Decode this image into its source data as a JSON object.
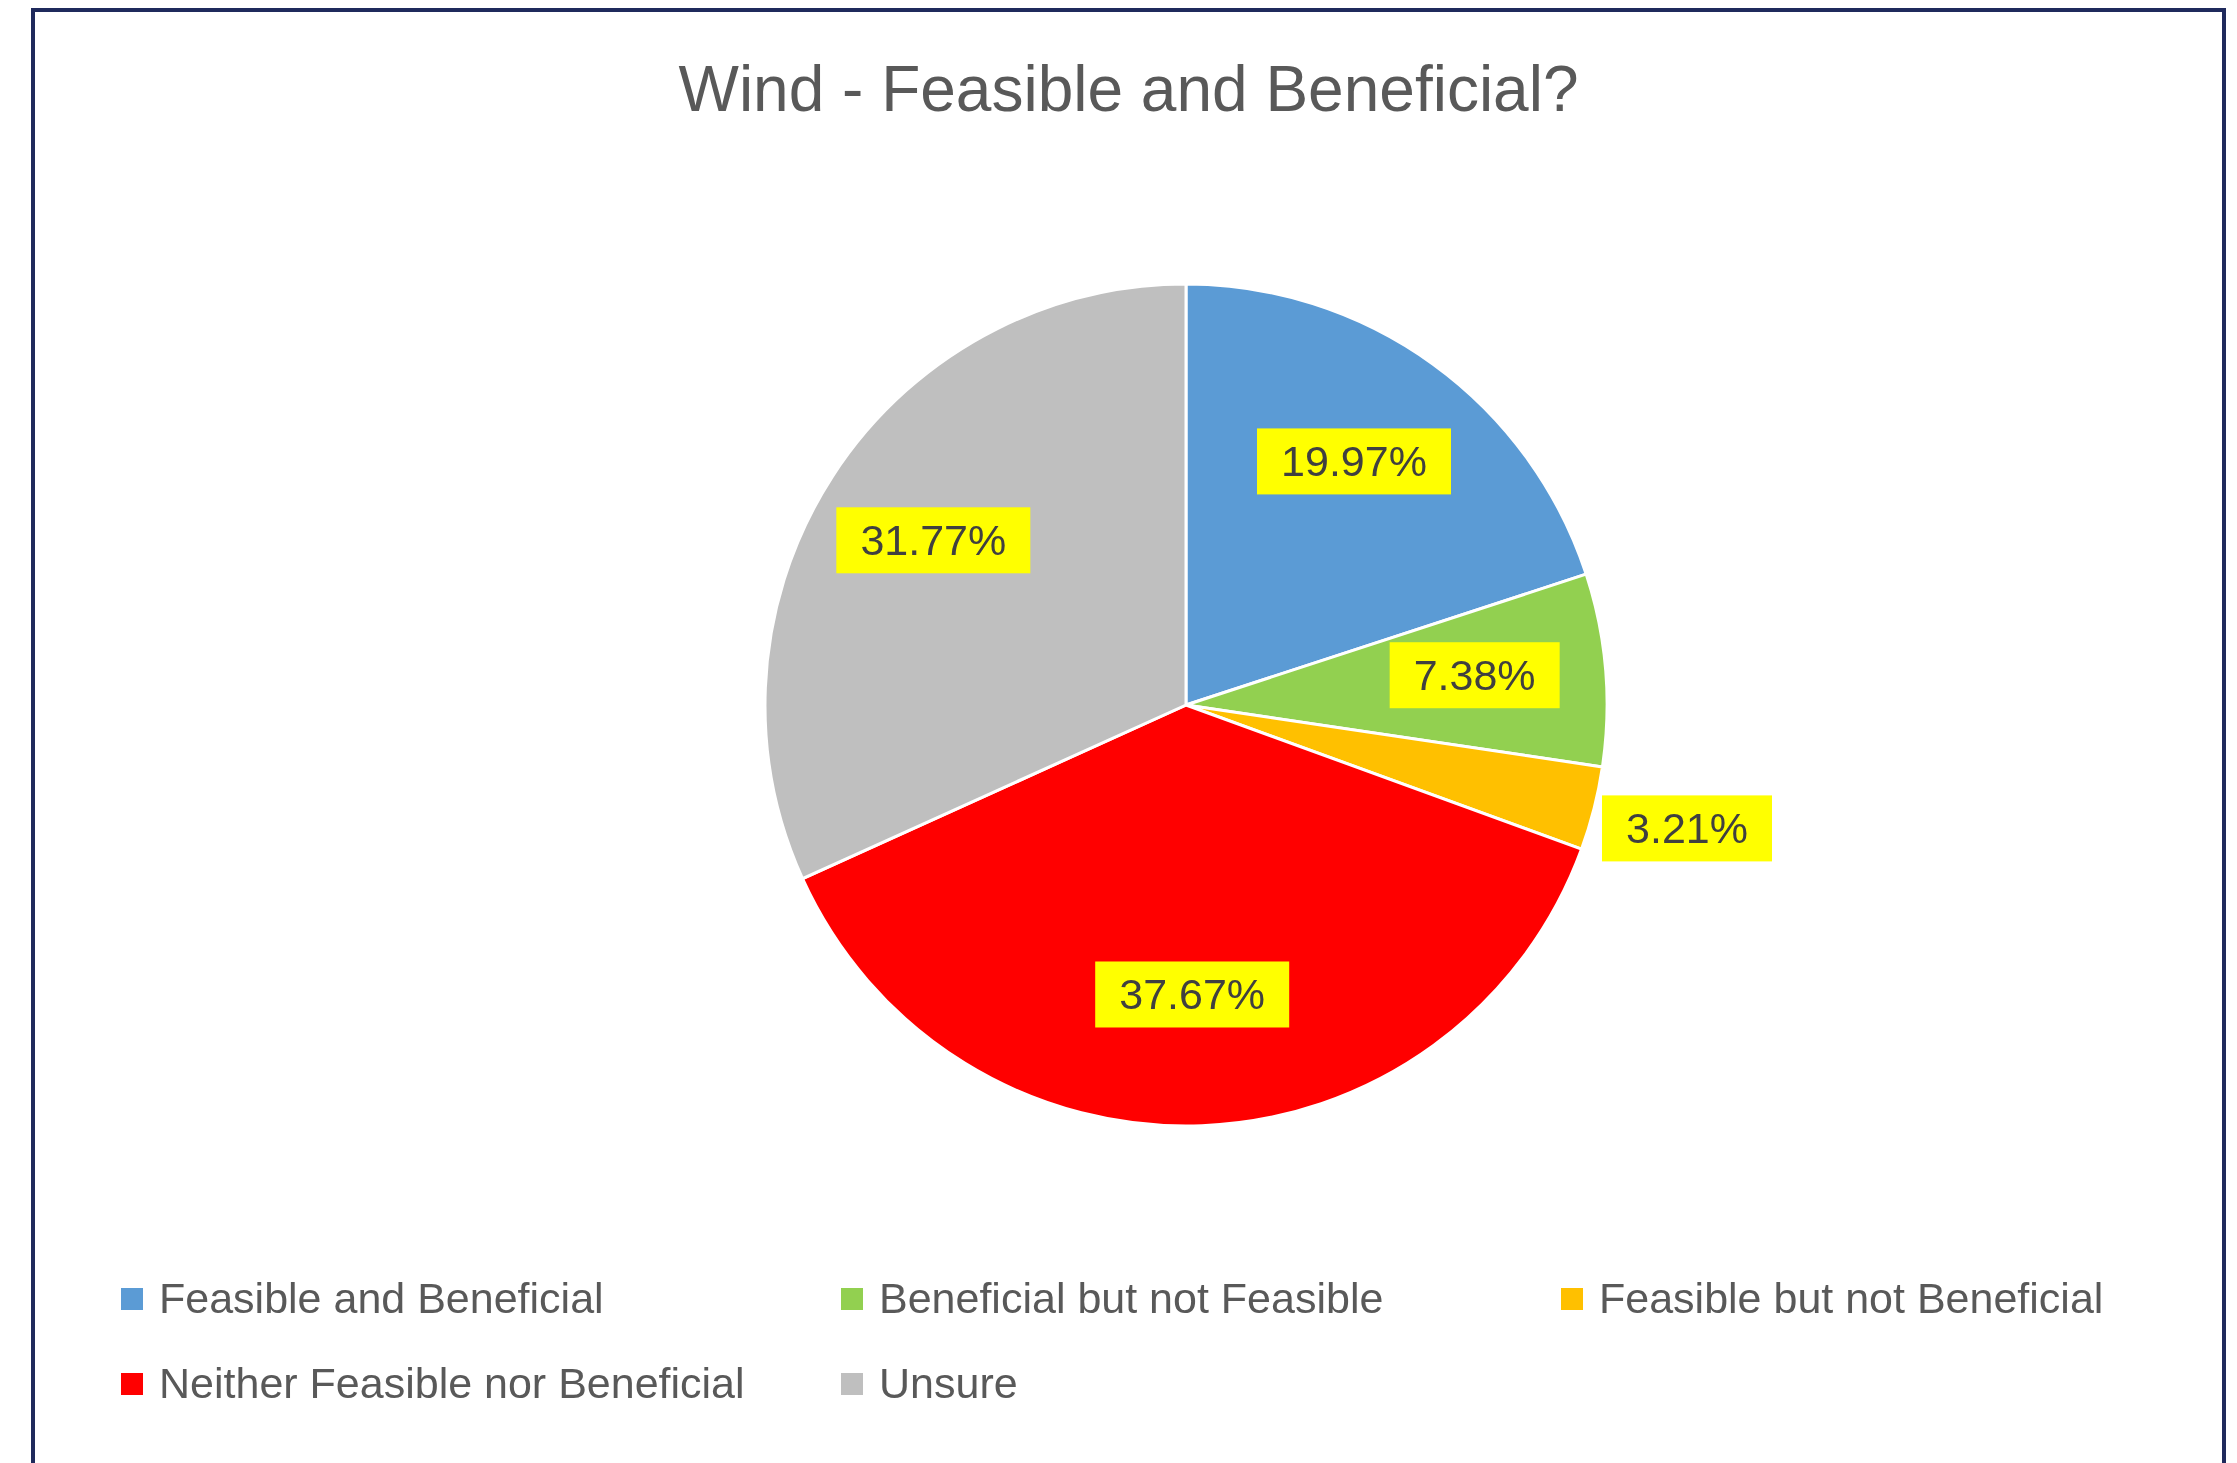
{
  "chart_data": {
    "type": "pie",
    "title": "Wind - Feasible and Beneficial?",
    "categories": [
      "Feasible and Beneficial",
      "Beneficial but not Feasible",
      "Feasible but not Beneficial",
      "Neither Feasible nor Beneficial",
      "Unsure"
    ],
    "values": [
      19.97,
      7.38,
      3.21,
      37.67,
      31.77
    ],
    "colors": [
      "#5b9bd5",
      "#92d050",
      "#ffc000",
      "#ff0000",
      "#bfbfbf"
    ],
    "value_labels": [
      "19.97%",
      "7.38%",
      "3.21%",
      "37.67%",
      "31.77%"
    ],
    "legend": "bottom"
  }
}
